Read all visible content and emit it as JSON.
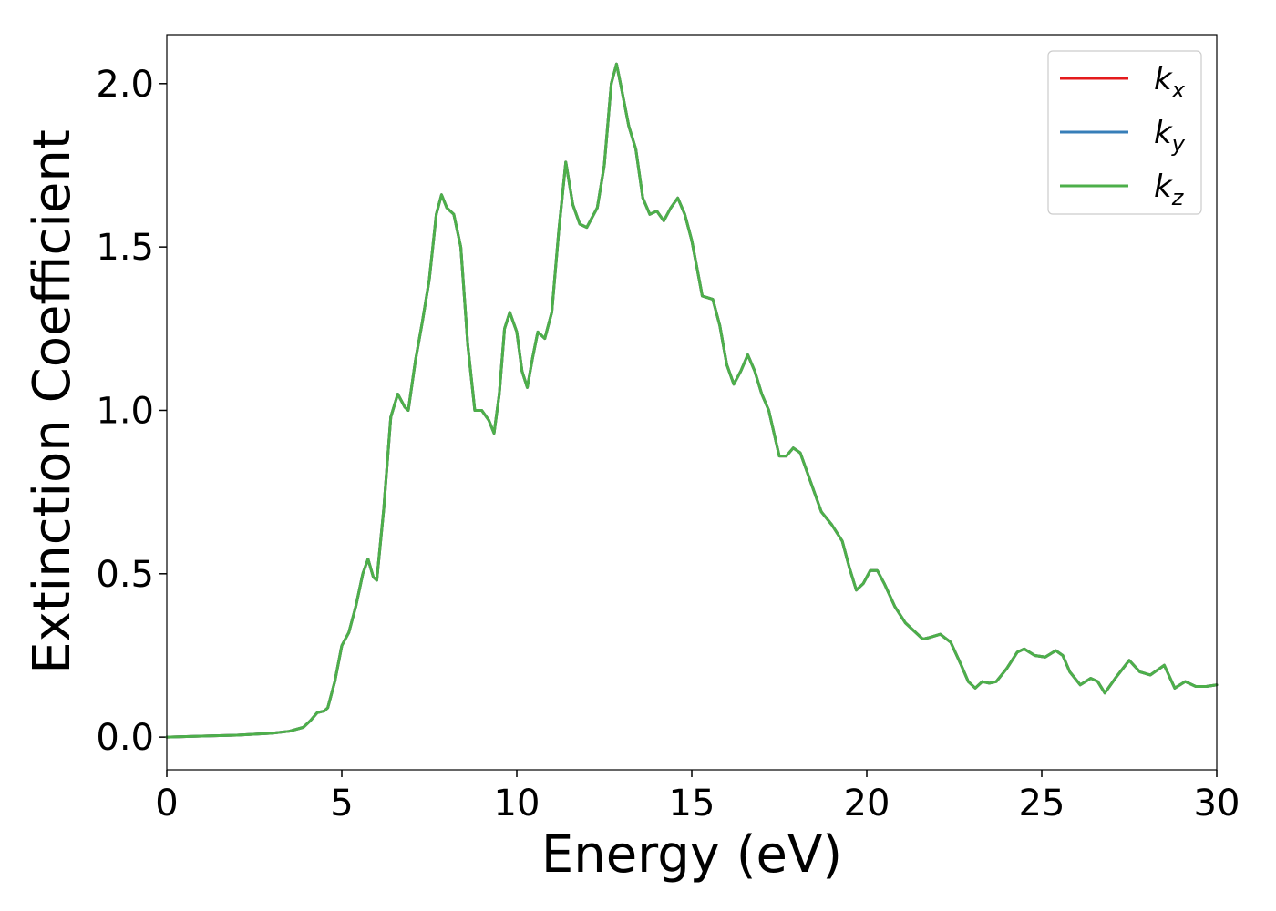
{
  "chart_data": {
    "type": "line",
    "xlabel": "Energy (eV)",
    "ylabel": "Extinction Coefficient",
    "xlim": [
      0,
      30
    ],
    "ylim": [
      -0.1,
      2.15
    ],
    "xticks": [
      0,
      5,
      10,
      15,
      20,
      25,
      30
    ],
    "yticks": [
      {
        "value": 0,
        "label": "0.0"
      },
      {
        "value": 0.5,
        "label": "0.5"
      },
      {
        "value": 1,
        "label": "1.0"
      },
      {
        "value": 1.5,
        "label": "1.5"
      },
      {
        "value": 2,
        "label": "2.0"
      }
    ],
    "legend": "upper right",
    "x": [
      0,
      1,
      2,
      3,
      3.5,
      3.9,
      4.1,
      4.3,
      4.5,
      4.6,
      4.8,
      5.0,
      5.2,
      5.4,
      5.6,
      5.75,
      5.9,
      6.0,
      6.2,
      6.4,
      6.6,
      6.8,
      6.9,
      7.1,
      7.3,
      7.5,
      7.7,
      7.85,
      8.0,
      8.2,
      8.4,
      8.6,
      8.8,
      9.0,
      9.2,
      9.35,
      9.5,
      9.65,
      9.8,
      10.0,
      10.15,
      10.3,
      10.45,
      10.6,
      10.8,
      11.0,
      11.2,
      11.4,
      11.6,
      11.8,
      12.0,
      12.3,
      12.5,
      12.7,
      12.85,
      13.0,
      13.2,
      13.4,
      13.6,
      13.8,
      14.0,
      14.2,
      14.4,
      14.6,
      14.8,
      15.0,
      15.3,
      15.6,
      15.8,
      16.0,
      16.2,
      16.4,
      16.6,
      16.8,
      17.0,
      17.2,
      17.5,
      17.7,
      17.9,
      18.1,
      18.4,
      18.7,
      19.0,
      19.3,
      19.5,
      19.7,
      19.9,
      20.1,
      20.3,
      20.5,
      20.8,
      21.1,
      21.4,
      21.6,
      21.8,
      22.1,
      22.4,
      22.7,
      22.9,
      23.1,
      23.3,
      23.5,
      23.7,
      24.0,
      24.3,
      24.5,
      24.8,
      25.1,
      25.4,
      25.6,
      25.8,
      26.1,
      26.4,
      26.6,
      26.8,
      27.1,
      27.5,
      27.8,
      28.1,
      28.5,
      28.8,
      29.1,
      29.4,
      29.7,
      30.0
    ],
    "series": [
      {
        "name": "kx",
        "color": "#e41a1c",
        "values": [
          0,
          0.003,
          0.006,
          0.012,
          0.018,
          0.03,
          0.05,
          0.075,
          0.08,
          0.09,
          0.17,
          0.28,
          0.32,
          0.4,
          0.5,
          0.545,
          0.49,
          0.48,
          0.7,
          0.98,
          1.05,
          1.01,
          1.0,
          1.15,
          1.27,
          1.4,
          1.6,
          1.66,
          1.62,
          1.6,
          1.5,
          1.2,
          1.0,
          1.0,
          0.97,
          0.93,
          1.05,
          1.25,
          1.3,
          1.24,
          1.12,
          1.07,
          1.16,
          1.24,
          1.22,
          1.3,
          1.55,
          1.76,
          1.63,
          1.57,
          1.56,
          1.62,
          1.75,
          2.0,
          2.06,
          1.98,
          1.87,
          1.8,
          1.65,
          1.6,
          1.61,
          1.58,
          1.62,
          1.65,
          1.6,
          1.52,
          1.35,
          1.34,
          1.26,
          1.14,
          1.08,
          1.12,
          1.17,
          1.12,
          1.05,
          1.0,
          0.86,
          0.86,
          0.885,
          0.87,
          0.78,
          0.69,
          0.65,
          0.6,
          0.52,
          0.45,
          0.47,
          0.51,
          0.51,
          0.47,
          0.4,
          0.35,
          0.32,
          0.3,
          0.305,
          0.315,
          0.29,
          0.22,
          0.17,
          0.15,
          0.17,
          0.165,
          0.17,
          0.21,
          0.26,
          0.27,
          0.25,
          0.245,
          0.265,
          0.25,
          0.2,
          0.16,
          0.18,
          0.17,
          0.135,
          0.18,
          0.235,
          0.2,
          0.19,
          0.22,
          0.15,
          0.17,
          0.155,
          0.155,
          0.16
        ]
      },
      {
        "name": "ky",
        "color": "#377eb8",
        "values": [
          0,
          0.003,
          0.006,
          0.012,
          0.018,
          0.03,
          0.05,
          0.075,
          0.08,
          0.09,
          0.17,
          0.28,
          0.32,
          0.4,
          0.5,
          0.545,
          0.49,
          0.48,
          0.7,
          0.98,
          1.05,
          1.01,
          1.0,
          1.15,
          1.27,
          1.4,
          1.6,
          1.66,
          1.62,
          1.6,
          1.5,
          1.2,
          1.0,
          1.0,
          0.97,
          0.93,
          1.05,
          1.25,
          1.3,
          1.24,
          1.12,
          1.07,
          1.16,
          1.24,
          1.22,
          1.3,
          1.55,
          1.76,
          1.63,
          1.57,
          1.56,
          1.62,
          1.75,
          2.0,
          2.06,
          1.98,
          1.87,
          1.8,
          1.65,
          1.6,
          1.61,
          1.58,
          1.62,
          1.65,
          1.6,
          1.52,
          1.35,
          1.34,
          1.26,
          1.14,
          1.08,
          1.12,
          1.17,
          1.12,
          1.05,
          1.0,
          0.86,
          0.86,
          0.885,
          0.87,
          0.78,
          0.69,
          0.65,
          0.6,
          0.52,
          0.45,
          0.47,
          0.51,
          0.51,
          0.47,
          0.4,
          0.35,
          0.32,
          0.3,
          0.305,
          0.315,
          0.29,
          0.22,
          0.17,
          0.15,
          0.17,
          0.165,
          0.17,
          0.21,
          0.26,
          0.27,
          0.25,
          0.245,
          0.265,
          0.25,
          0.2,
          0.16,
          0.18,
          0.17,
          0.135,
          0.18,
          0.235,
          0.2,
          0.19,
          0.22,
          0.15,
          0.17,
          0.155,
          0.155,
          0.16
        ]
      },
      {
        "name": "kz",
        "color": "#4daf4a",
        "values": [
          0,
          0.003,
          0.006,
          0.012,
          0.018,
          0.03,
          0.05,
          0.075,
          0.08,
          0.09,
          0.17,
          0.28,
          0.32,
          0.4,
          0.5,
          0.545,
          0.49,
          0.48,
          0.7,
          0.98,
          1.05,
          1.01,
          1.0,
          1.15,
          1.27,
          1.4,
          1.6,
          1.66,
          1.62,
          1.6,
          1.5,
          1.2,
          1.0,
          1.0,
          0.97,
          0.93,
          1.05,
          1.25,
          1.3,
          1.24,
          1.12,
          1.07,
          1.16,
          1.24,
          1.22,
          1.3,
          1.55,
          1.76,
          1.63,
          1.57,
          1.56,
          1.62,
          1.75,
          2.0,
          2.06,
          1.98,
          1.87,
          1.8,
          1.65,
          1.6,
          1.61,
          1.58,
          1.62,
          1.65,
          1.6,
          1.52,
          1.35,
          1.34,
          1.26,
          1.14,
          1.08,
          1.12,
          1.17,
          1.12,
          1.05,
          1.0,
          0.86,
          0.86,
          0.885,
          0.87,
          0.78,
          0.69,
          0.65,
          0.6,
          0.52,
          0.45,
          0.47,
          0.51,
          0.51,
          0.47,
          0.4,
          0.35,
          0.32,
          0.3,
          0.305,
          0.315,
          0.29,
          0.22,
          0.17,
          0.15,
          0.17,
          0.165,
          0.17,
          0.21,
          0.26,
          0.27,
          0.25,
          0.245,
          0.265,
          0.25,
          0.2,
          0.16,
          0.18,
          0.17,
          0.135,
          0.18,
          0.235,
          0.2,
          0.19,
          0.22,
          0.15,
          0.17,
          0.155,
          0.155,
          0.16
        ]
      }
    ]
  }
}
